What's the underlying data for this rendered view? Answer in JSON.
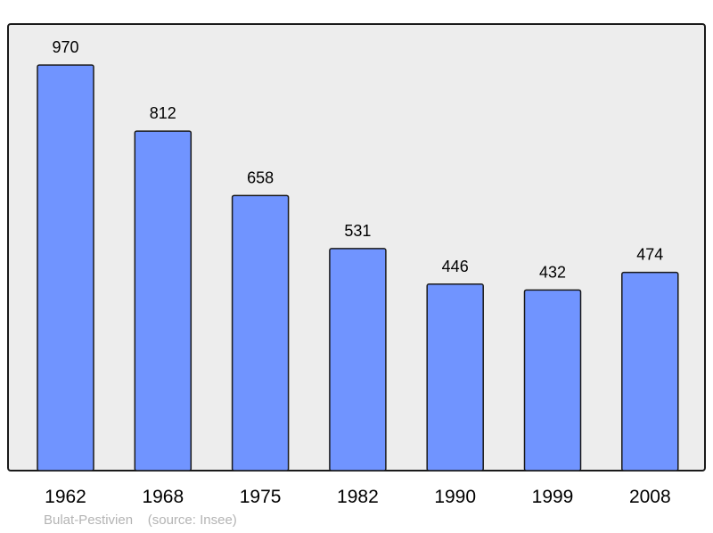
{
  "chart_data": {
    "type": "bar",
    "categories": [
      "1962",
      "1968",
      "1975",
      "1982",
      "1990",
      "1999",
      "2008"
    ],
    "values": [
      970,
      812,
      658,
      531,
      446,
      432,
      474
    ],
    "title": "",
    "xlabel": "",
    "ylabel": "",
    "ylim": [
      0,
      1068
    ],
    "grid": false,
    "data_labels": true,
    "colors": {
      "bar": "#7094ff",
      "bar_stroke": "#1a1a1a",
      "plot_background": "#ededed",
      "frame": "#1a1a1a"
    }
  },
  "footer": {
    "place": "Bulat-Pestivien",
    "source": "(source: Insee)"
  }
}
